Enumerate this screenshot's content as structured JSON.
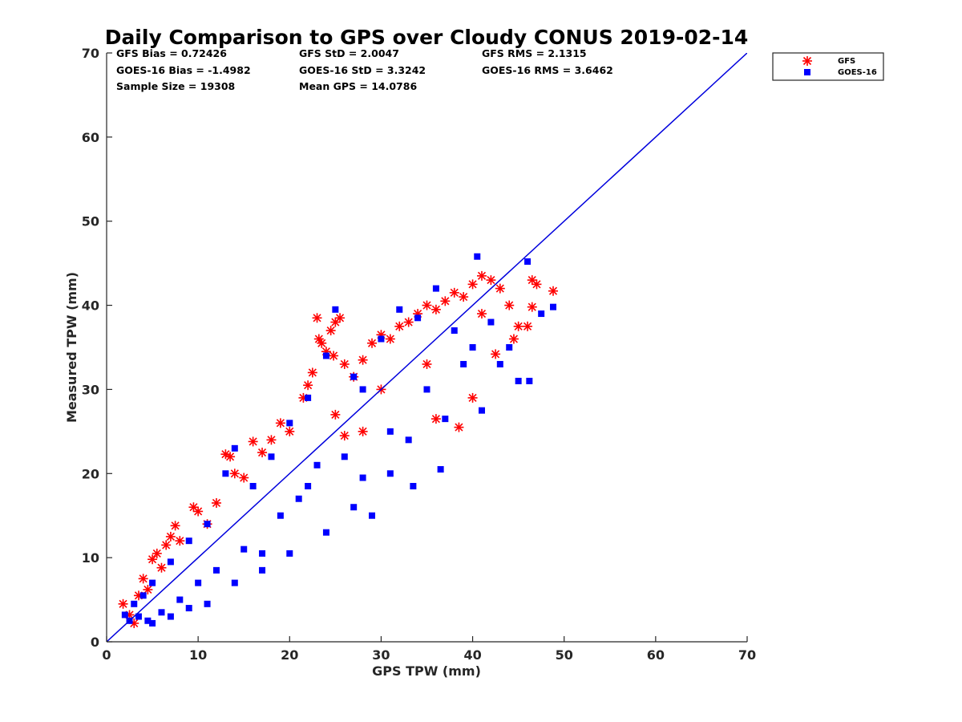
{
  "chart_data": {
    "type": "scatter",
    "title": "Daily Comparison to GPS over Cloudy CONUS 2019-02-14",
    "xlabel": "GPS TPW (mm)",
    "ylabel": "Measured TPW (mm)",
    "xlim": [
      0,
      70
    ],
    "ylim": [
      0,
      70
    ],
    "xticks": [
      "0",
      "10",
      "20",
      "30",
      "40",
      "50",
      "60",
      "70"
    ],
    "yticks": [
      "0",
      "10",
      "20",
      "30",
      "40",
      "50",
      "60",
      "70"
    ],
    "grid": false,
    "legend_position": "outside-top-right",
    "reference_line": {
      "name": "1:1 line",
      "from": [
        0,
        0
      ],
      "to": [
        70,
        70
      ],
      "color": "#0000dd"
    },
    "stats": [
      [
        "GFS Bias = 0.72426",
        "GFS StD = 2.0047",
        "GFS RMS = 2.1315"
      ],
      [
        "GOES-16 Bias = -1.4982",
        "GOES-16 StD = 3.3242",
        "GOES-16 RMS = 3.6462"
      ],
      [
        "Sample Size = 19308",
        "Mean GPS = 14.0786",
        ""
      ]
    ],
    "series": [
      {
        "name": "GFS",
        "marker": "asterisk",
        "color": "#ff0000",
        "points": [
          [
            1.8,
            4.5
          ],
          [
            2.5,
            3.2
          ],
          [
            3.0,
            2.2
          ],
          [
            3.5,
            5.5
          ],
          [
            4.0,
            7.5
          ],
          [
            4.5,
            6.2
          ],
          [
            5.0,
            9.8
          ],
          [
            5.5,
            10.5
          ],
          [
            6.0,
            8.8
          ],
          [
            6.5,
            11.5
          ],
          [
            7.0,
            12.5
          ],
          [
            7.5,
            13.8
          ],
          [
            8.0,
            12.0
          ],
          [
            9.5,
            16.0
          ],
          [
            10.0,
            15.5
          ],
          [
            11.0,
            14.0
          ],
          [
            12.0,
            16.5
          ],
          [
            13.0,
            22.3
          ],
          [
            13.5,
            22.0
          ],
          [
            14.0,
            20.0
          ],
          [
            15.0,
            19.5
          ],
          [
            16.0,
            23.8
          ],
          [
            17.0,
            22.5
          ],
          [
            18.0,
            24.0
          ],
          [
            19.0,
            26.0
          ],
          [
            20.0,
            25.0
          ],
          [
            21.5,
            29.0
          ],
          [
            22.0,
            30.5
          ],
          [
            22.5,
            32.0
          ],
          [
            23.0,
            38.5
          ],
          [
            23.2,
            36.0
          ],
          [
            23.5,
            35.5
          ],
          [
            24.0,
            34.5
          ],
          [
            24.5,
            37.0
          ],
          [
            25.0,
            38.0
          ],
          [
            25.5,
            38.5
          ],
          [
            24.8,
            34.0
          ],
          [
            26.0,
            33.0
          ],
          [
            27.0,
            31.5
          ],
          [
            28.0,
            33.5
          ],
          [
            29.0,
            35.5
          ],
          [
            30.0,
            36.5
          ],
          [
            31.0,
            36.0
          ],
          [
            32.0,
            37.5
          ],
          [
            33.0,
            38.0
          ],
          [
            34.0,
            39.0
          ],
          [
            35.0,
            40.0
          ],
          [
            36.0,
            39.5
          ],
          [
            37.0,
            40.5
          ],
          [
            38.0,
            41.5
          ],
          [
            39.0,
            41.0
          ],
          [
            40.0,
            42.5
          ],
          [
            41.0,
            43.5
          ],
          [
            42.0,
            43.0
          ],
          [
            43.0,
            42.0
          ],
          [
            44.0,
            40.0
          ],
          [
            45.0,
            37.5
          ],
          [
            46.0,
            37.5
          ],
          [
            46.5,
            43.0
          ],
          [
            47.0,
            42.5
          ],
          [
            48.8,
            41.7
          ],
          [
            46.5,
            39.8
          ],
          [
            42.5,
            34.2
          ],
          [
            38.5,
            25.5
          ],
          [
            40.0,
            29.0
          ],
          [
            36.0,
            26.5
          ],
          [
            30.0,
            30.0
          ],
          [
            28.0,
            25.0
          ],
          [
            26.0,
            24.5
          ],
          [
            25.0,
            27.0
          ],
          [
            35.0,
            33.0
          ],
          [
            41.0,
            39.0
          ],
          [
            44.5,
            36.0
          ]
        ]
      },
      {
        "name": "GOES-16",
        "marker": "square",
        "color": "#0000ff",
        "points": [
          [
            2.0,
            3.2
          ],
          [
            2.5,
            2.5
          ],
          [
            3.0,
            4.5
          ],
          [
            3.5,
            3.0
          ],
          [
            4.0,
            5.5
          ],
          [
            4.5,
            2.5
          ],
          [
            5.0,
            7.0
          ],
          [
            6.0,
            3.5
          ],
          [
            7.0,
            9.5
          ],
          [
            8.0,
            5.0
          ],
          [
            9.0,
            12.0
          ],
          [
            10.0,
            7.0
          ],
          [
            11.0,
            14.0
          ],
          [
            12.0,
            8.5
          ],
          [
            13.0,
            20.0
          ],
          [
            14.0,
            23.0
          ],
          [
            15.0,
            11.0
          ],
          [
            16.0,
            18.5
          ],
          [
            17.0,
            10.5
          ],
          [
            18.0,
            22.0
          ],
          [
            19.0,
            15.0
          ],
          [
            20.0,
            26.0
          ],
          [
            21.0,
            17.0
          ],
          [
            22.0,
            29.0
          ],
          [
            23.0,
            21.0
          ],
          [
            24.0,
            34.0
          ],
          [
            25.0,
            39.5
          ],
          [
            26.0,
            22.0
          ],
          [
            27.0,
            31.5
          ],
          [
            28.0,
            19.5
          ],
          [
            29.0,
            15.0
          ],
          [
            30.0,
            36.0
          ],
          [
            31.0,
            25.0
          ],
          [
            32.0,
            39.5
          ],
          [
            33.0,
            24.0
          ],
          [
            34.0,
            38.5
          ],
          [
            35.0,
            30.0
          ],
          [
            36.0,
            42.0
          ],
          [
            37.0,
            26.5
          ],
          [
            38.0,
            37.0
          ],
          [
            39.0,
            33.0
          ],
          [
            40.0,
            35.0
          ],
          [
            40.5,
            45.8
          ],
          [
            41.0,
            27.5
          ],
          [
            42.0,
            38.0
          ],
          [
            43.0,
            33.0
          ],
          [
            44.0,
            35.0
          ],
          [
            45.0,
            31.0
          ],
          [
            46.0,
            45.2
          ],
          [
            46.2,
            31.0
          ],
          [
            47.5,
            39.0
          ],
          [
            48.8,
            39.8
          ],
          [
            36.5,
            20.5
          ],
          [
            33.5,
            18.5
          ],
          [
            31.0,
            20.0
          ],
          [
            27.0,
            16.0
          ],
          [
            24.0,
            13.0
          ],
          [
            20.0,
            10.5
          ],
          [
            17.0,
            8.5
          ],
          [
            14.0,
            7.0
          ],
          [
            11.0,
            4.5
          ],
          [
            9.0,
            4.0
          ],
          [
            7.0,
            3.0
          ],
          [
            5.0,
            2.2
          ],
          [
            28.0,
            30.0
          ],
          [
            22.0,
            18.5
          ]
        ]
      }
    ]
  }
}
